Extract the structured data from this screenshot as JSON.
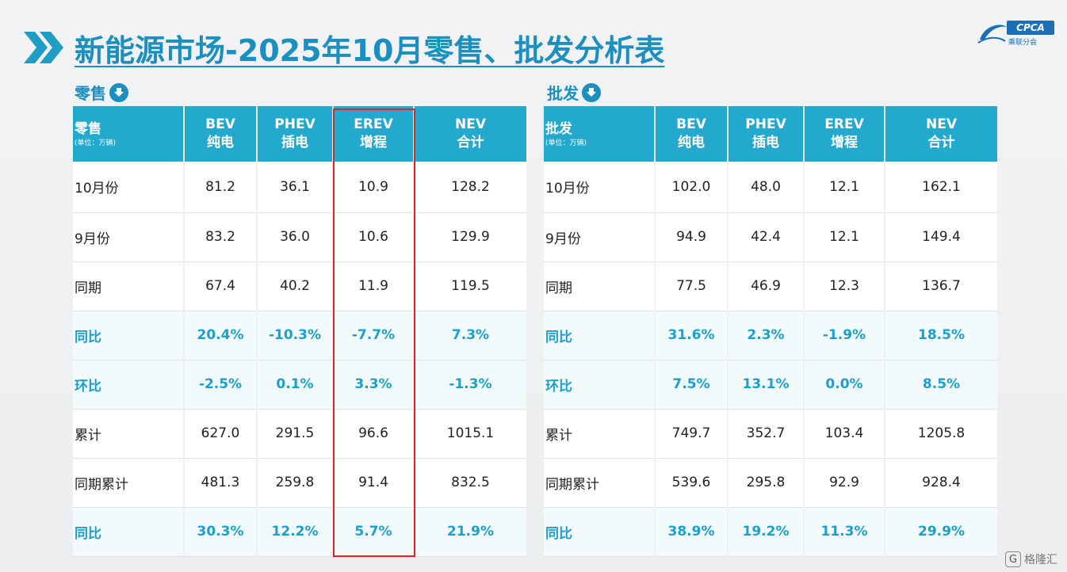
{
  "title": "新能源市场-2025年10月零售、批发分析表",
  "logo": {
    "badge": "CPCA",
    "sub": "乘联分会"
  },
  "retail": {
    "section_label": "零售",
    "header": [
      {
        "line1": "零售",
        "unit": "(单位：万辆)"
      },
      {
        "line1": "BEV",
        "line2": "纯电"
      },
      {
        "line1": "PHEV",
        "line2": "插电"
      },
      {
        "line1": "EREV",
        "line2": "增程"
      },
      {
        "line1": "NEV",
        "line2": "合计"
      }
    ],
    "rows": [
      {
        "label": "10月份",
        "values": [
          "81.2",
          "36.1",
          "10.9",
          "128.2"
        ],
        "highlight": false
      },
      {
        "label": "9月份",
        "values": [
          "83.2",
          "36.0",
          "10.6",
          "129.9"
        ],
        "highlight": false
      },
      {
        "label": "同期",
        "values": [
          "67.4",
          "40.2",
          "11.9",
          "119.5"
        ],
        "highlight": false
      },
      {
        "label": "同比",
        "values": [
          "20.4%",
          "-10.3%",
          "-7.7%",
          "7.3%"
        ],
        "highlight": true
      },
      {
        "label": "环比",
        "values": [
          "-2.5%",
          "0.1%",
          "3.3%",
          "-1.3%"
        ],
        "highlight": true
      },
      {
        "label": "累计",
        "values": [
          "627.0",
          "291.5",
          "96.6",
          "1015.1"
        ],
        "highlight": false
      },
      {
        "label": "同期累计",
        "values": [
          "481.3",
          "259.8",
          "91.4",
          "832.5"
        ],
        "highlight": false
      },
      {
        "label": "同比",
        "values": [
          "30.3%",
          "12.2%",
          "5.7%",
          "21.9%"
        ],
        "highlight": true
      }
    ]
  },
  "wholesale": {
    "section_label": "批发",
    "header": [
      {
        "line1": "批发",
        "unit": "(单位：万辆)"
      },
      {
        "line1": "BEV",
        "line2": "纯电"
      },
      {
        "line1": "PHEV",
        "line2": "插电"
      },
      {
        "line1": "EREV",
        "line2": "增程"
      },
      {
        "line1": "NEV",
        "line2": "合计"
      }
    ],
    "rows": [
      {
        "label": "10月份",
        "values": [
          "102.0",
          "48.0",
          "12.1",
          "162.1"
        ],
        "highlight": false
      },
      {
        "label": "9月份",
        "values": [
          "94.9",
          "42.4",
          "12.1",
          "149.4"
        ],
        "highlight": false
      },
      {
        "label": "同期",
        "values": [
          "77.5",
          "46.9",
          "12.3",
          "136.7"
        ],
        "highlight": false
      },
      {
        "label": "同比",
        "values": [
          "31.6%",
          "2.3%",
          "-1.9%",
          "18.5%"
        ],
        "highlight": true
      },
      {
        "label": "环比",
        "values": [
          "7.5%",
          "13.1%",
          "0.0%",
          "8.5%"
        ],
        "highlight": true
      },
      {
        "label": "累计",
        "values": [
          "749.7",
          "352.7",
          "103.4",
          "1205.8"
        ],
        "highlight": false
      },
      {
        "label": "同期累计",
        "values": [
          "539.6",
          "295.8",
          "92.9",
          "928.4"
        ],
        "highlight": false
      },
      {
        "label": "同比",
        "values": [
          "38.9%",
          "19.2%",
          "11.3%",
          "29.9%"
        ],
        "highlight": true
      }
    ]
  },
  "colors": {
    "accent": "#1b8fc0",
    "header_bg": "#23a8ce",
    "highlight_text": "#1b9fcb",
    "box": "#e3231e"
  },
  "watermark": {
    "icon": "G",
    "text": "格隆汇"
  }
}
